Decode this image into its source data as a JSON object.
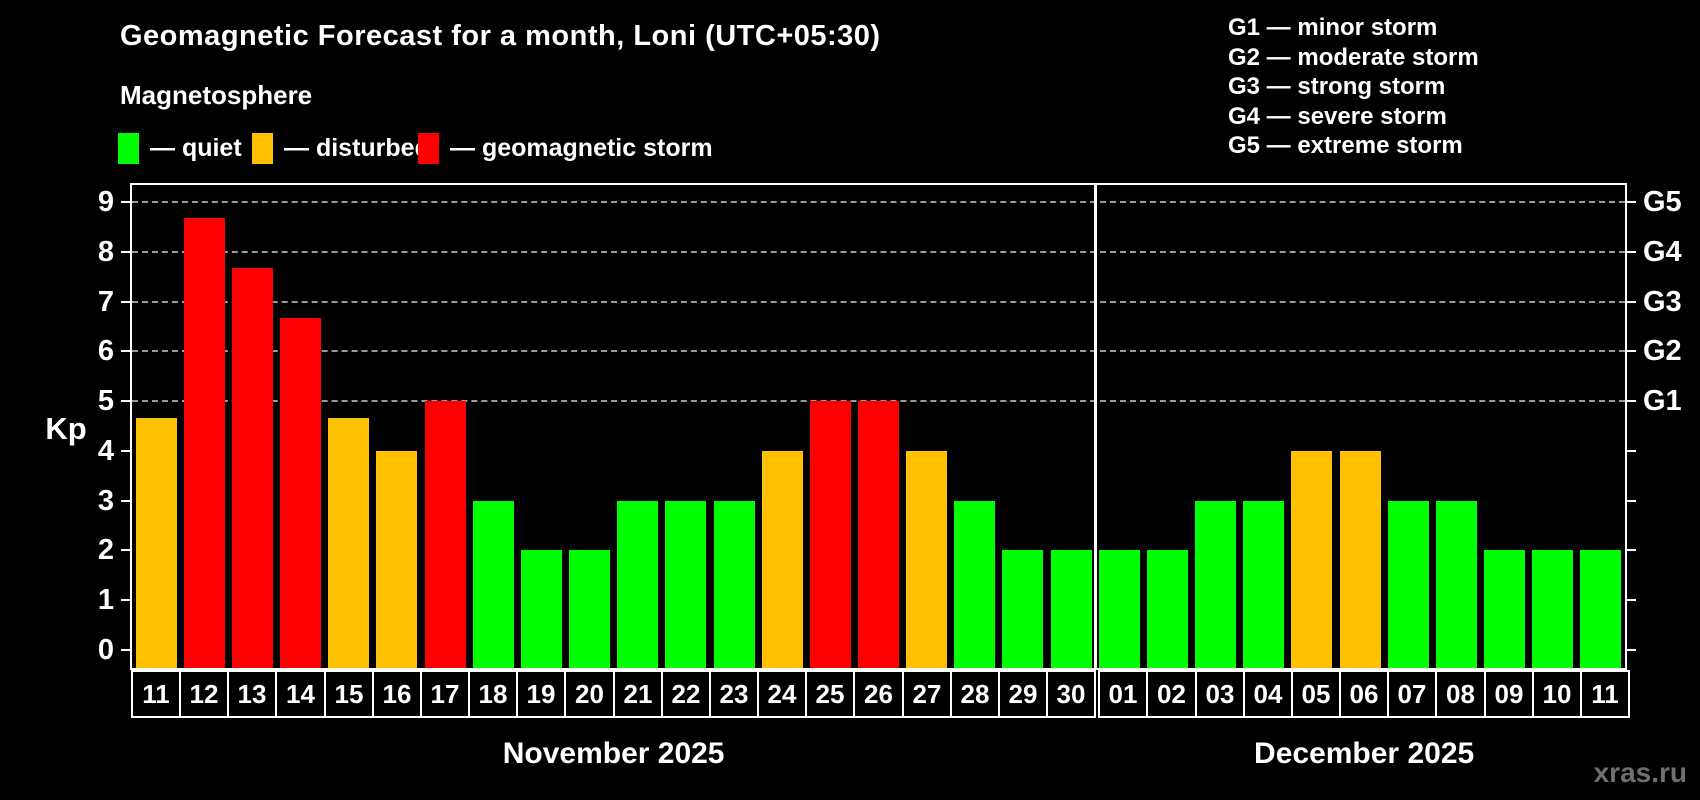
{
  "header": {
    "title": "Geomagnetic Forecast for a month, Loni (UTC+05:30)",
    "subtitle": "Magnetosphere"
  },
  "category_legend": {
    "items": [
      {
        "name": "quiet",
        "label": "— quiet",
        "color_key": "quiet"
      },
      {
        "name": "disturbed",
        "label": "— disturbed",
        "color_key": "disturbed"
      },
      {
        "name": "storm",
        "label": "— geomagnetic storm",
        "color_key": "storm"
      }
    ]
  },
  "storm_scale_legend": {
    "items": [
      {
        "label": "G1 — minor storm"
      },
      {
        "label": "G2 — moderate storm"
      },
      {
        "label": "G3 — strong storm"
      },
      {
        "label": "G4 — severe storm"
      },
      {
        "label": "G5 — extreme storm"
      }
    ]
  },
  "colors": {
    "quiet": "#00ff00",
    "disturbed": "#ffc000",
    "storm": "#ff0000",
    "background": "#000000",
    "axis": "#ffffff",
    "grid": "#9a9a9a",
    "watermark": "#6f6f6f"
  },
  "watermark": "xras.ru",
  "chart_data": {
    "type": "bar",
    "title": "Geomagnetic Forecast for a month, Loni (UTC+05:30)",
    "subtitle": "Magnetosphere",
    "ylabel": "Kp",
    "ylim": [
      -0.36,
      9.34
    ],
    "yticks": [
      0,
      1,
      2,
      3,
      4,
      5,
      6,
      7,
      8,
      9
    ],
    "gridlines_at": [
      5,
      6,
      7,
      8,
      9
    ],
    "grid_style": "dashed horizontal at storm levels only",
    "legend_position": "top",
    "right_axis_labels": [
      {
        "kp": 5,
        "label": "G1"
      },
      {
        "kp": 6,
        "label": "G2"
      },
      {
        "kp": 7,
        "label": "G3"
      },
      {
        "kp": 8,
        "label": "G4"
      },
      {
        "kp": 9,
        "label": "G5"
      }
    ],
    "months": [
      {
        "label": "November 2025",
        "days": [
          {
            "date": "11",
            "kp": 4.67,
            "category": "disturbed"
          },
          {
            "date": "12",
            "kp": 8.67,
            "category": "storm"
          },
          {
            "date": "13",
            "kp": 7.67,
            "category": "storm"
          },
          {
            "date": "14",
            "kp": 6.67,
            "category": "storm"
          },
          {
            "date": "15",
            "kp": 4.67,
            "category": "disturbed"
          },
          {
            "date": "16",
            "kp": 4.0,
            "category": "disturbed"
          },
          {
            "date": "17",
            "kp": 5.0,
            "category": "storm"
          },
          {
            "date": "18",
            "kp": 3.0,
            "category": "quiet"
          },
          {
            "date": "19",
            "kp": 2.0,
            "category": "quiet"
          },
          {
            "date": "20",
            "kp": 2.0,
            "category": "quiet"
          },
          {
            "date": "21",
            "kp": 3.0,
            "category": "quiet"
          },
          {
            "date": "22",
            "kp": 3.0,
            "category": "quiet"
          },
          {
            "date": "23",
            "kp": 3.0,
            "category": "quiet"
          },
          {
            "date": "24",
            "kp": 4.0,
            "category": "disturbed"
          },
          {
            "date": "25",
            "kp": 5.0,
            "category": "storm"
          },
          {
            "date": "26",
            "kp": 5.0,
            "category": "storm"
          },
          {
            "date": "27",
            "kp": 4.0,
            "category": "disturbed"
          },
          {
            "date": "28",
            "kp": 3.0,
            "category": "quiet"
          },
          {
            "date": "29",
            "kp": 2.0,
            "category": "quiet"
          },
          {
            "date": "30",
            "kp": 2.0,
            "category": "quiet"
          }
        ]
      },
      {
        "label": "December 2025",
        "days": [
          {
            "date": "01",
            "kp": 2.0,
            "category": "quiet"
          },
          {
            "date": "02",
            "kp": 2.0,
            "category": "quiet"
          },
          {
            "date": "03",
            "kp": 3.0,
            "category": "quiet"
          },
          {
            "date": "04",
            "kp": 3.0,
            "category": "quiet"
          },
          {
            "date": "05",
            "kp": 4.0,
            "category": "disturbed"
          },
          {
            "date": "06",
            "kp": 4.0,
            "category": "disturbed"
          },
          {
            "date": "07",
            "kp": 3.0,
            "category": "quiet"
          },
          {
            "date": "08",
            "kp": 3.0,
            "category": "quiet"
          },
          {
            "date": "09",
            "kp": 2.0,
            "category": "quiet"
          },
          {
            "date": "10",
            "kp": 2.0,
            "category": "quiet"
          },
          {
            "date": "11",
            "kp": 2.0,
            "category": "quiet"
          }
        ]
      }
    ]
  }
}
